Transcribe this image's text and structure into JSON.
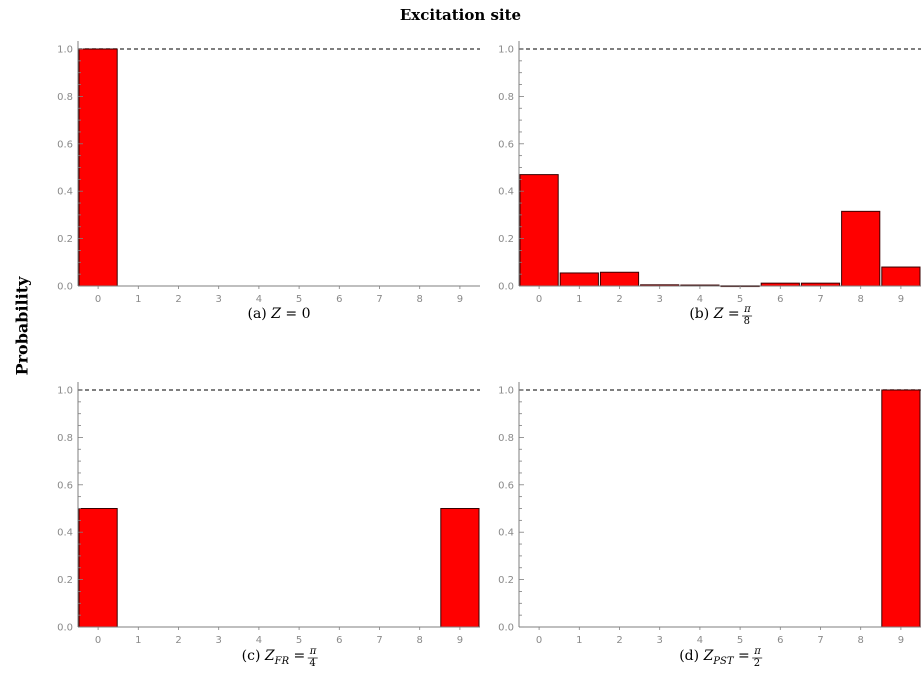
{
  "figure": {
    "title": "Excitation site",
    "ylabel": "Probability"
  },
  "colors": {
    "bar_fill": "#ff0000",
    "bar_stroke": "#3a0000",
    "axis": "#7f7f7f",
    "reference_line": "#555555",
    "tick_text": "#8a8a8a"
  },
  "chart_data": [
    {
      "type": "bar",
      "panel": "a",
      "caption": "(a) Z = 0",
      "categories": [
        "0",
        "1",
        "2",
        "3",
        "4",
        "5",
        "6",
        "7",
        "8",
        "9"
      ],
      "values": [
        1.0,
        0,
        0,
        0,
        0,
        0,
        0,
        0,
        0,
        0
      ],
      "ylim": [
        0,
        1.0
      ],
      "yticks": [
        "0.0",
        "0.2",
        "0.4",
        "0.6",
        "0.8",
        "1.0"
      ],
      "reference_line": 1.0,
      "grid": false
    },
    {
      "type": "bar",
      "panel": "b",
      "caption": "(b) Z = π/8",
      "categories": [
        "0",
        "1",
        "2",
        "3",
        "4",
        "5",
        "6",
        "7",
        "8",
        "9"
      ],
      "values": [
        0.47,
        0.055,
        0.058,
        0.005,
        0.004,
        0.001,
        0.012,
        0.012,
        0.315,
        0.08
      ],
      "ylim": [
        0,
        1.0
      ],
      "yticks": [
        "0.0",
        "0.2",
        "0.4",
        "0.6",
        "0.8",
        "1.0"
      ],
      "reference_line": 1.0,
      "grid": false
    },
    {
      "type": "bar",
      "panel": "c",
      "caption": "(c) Z_FR = π/4",
      "categories": [
        "0",
        "1",
        "2",
        "3",
        "4",
        "5",
        "6",
        "7",
        "8",
        "9"
      ],
      "values": [
        0.5,
        0,
        0,
        0,
        0,
        0,
        0,
        0,
        0,
        0.5
      ],
      "ylim": [
        0,
        1.0
      ],
      "yticks": [
        "0.0",
        "0.2",
        "0.4",
        "0.6",
        "0.8",
        "1.0"
      ],
      "reference_line": 1.0,
      "grid": false
    },
    {
      "type": "bar",
      "panel": "d",
      "caption": "(d) Z_PST = π/2",
      "categories": [
        "0",
        "1",
        "2",
        "3",
        "4",
        "5",
        "6",
        "7",
        "8",
        "9"
      ],
      "values": [
        0,
        0,
        0,
        0,
        0,
        0,
        0,
        0,
        0,
        1.0
      ],
      "ylim": [
        0,
        1.0
      ],
      "yticks": [
        "0.0",
        "0.2",
        "0.4",
        "0.6",
        "0.8",
        "1.0"
      ],
      "reference_line": 1.0,
      "grid": false
    }
  ]
}
